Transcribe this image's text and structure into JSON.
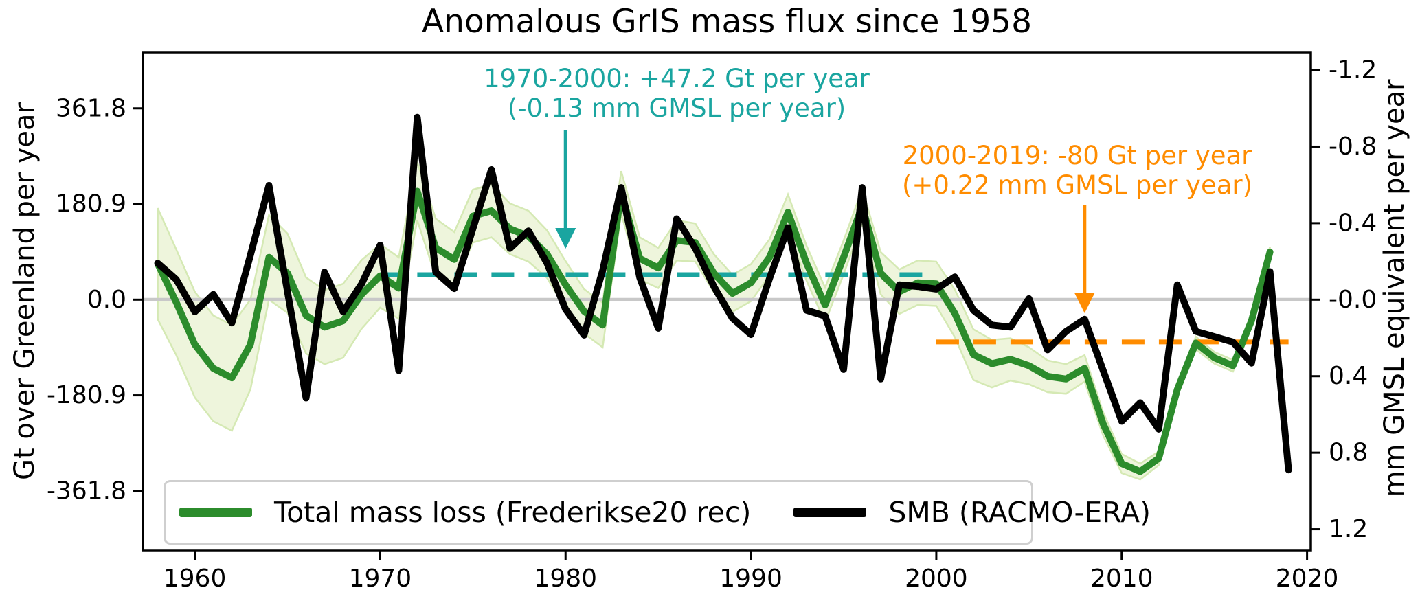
{
  "title": "Anomalous GrIS mass flux since 1958",
  "colors": {
    "green": "#2c8c2c",
    "band_fill": "#eef5dc",
    "band_edge": "#d5e9b4",
    "black": "#000000",
    "teal": "#1aa5a0",
    "orange": "#ff8c00",
    "zero_line": "#c8c8c8",
    "legend_border": "#cfcfcf"
  },
  "axes": {
    "left": {
      "label": "Gt over Greenland per year",
      "tick_labels": [
        "361.8",
        "180.9",
        "0.0",
        "-180.9",
        "-361.8"
      ],
      "tick_values": [
        361.8,
        180.9,
        0,
        -180.9,
        -361.8
      ]
    },
    "right": {
      "label": "mm GMSL equivalent per year",
      "tick_labels": [
        "-1.2",
        "-0.8",
        "-0.4",
        "-0.0",
        "0.4",
        "0.8",
        "1.2"
      ],
      "tick_values": [
        -1.2,
        -0.8,
        -0.4,
        0,
        0.4,
        0.8,
        1.2
      ]
    },
    "bottom": {
      "tick_labels": [
        "1960",
        "1970",
        "1980",
        "1990",
        "2000",
        "2010",
        "2020"
      ],
      "tick_values": [
        1960,
        1970,
        1980,
        1990,
        2000,
        2010,
        2020
      ]
    }
  },
  "annotations": {
    "teal": {
      "line1": "1970-2000: +47.2 Gt per year",
      "line2": "(-0.13 mm GMSL per year)",
      "color": "#1aa5a0",
      "arrow_year": 1980
    },
    "orange": {
      "line1": "2000-2019: -80 Gt per year",
      "line2": "(+0.22 mm GMSL per year)",
      "color": "#ff8c00",
      "arrow_year": 2008
    }
  },
  "legend": {
    "items": [
      {
        "label": "Total mass loss (Frederikse20 rec)",
        "color": "#2c8c2c"
      },
      {
        "label": "SMB (RACMO-ERA)",
        "color": "#000000"
      }
    ]
  },
  "chart_data": {
    "type": "line",
    "title": "Anomalous GrIS mass flux since 1958",
    "ylabel_left": "Gt over Greenland per year",
    "ylabel_right": "mm GMSL equivalent per year",
    "xlim": [
      1957.2,
      2020.2
    ],
    "ylim_gt": [
      -475,
      468
    ],
    "grid": "zero-line-only",
    "legend_position": "lower-left",
    "x": [
      1958,
      1959,
      1960,
      1961,
      1962,
      1963,
      1964,
      1965,
      1966,
      1967,
      1968,
      1969,
      1970,
      1971,
      1972,
      1973,
      1974,
      1975,
      1976,
      1977,
      1978,
      1979,
      1980,
      1981,
      1982,
      1983,
      1984,
      1985,
      1986,
      1987,
      1988,
      1989,
      1990,
      1991,
      1992,
      1993,
      1994,
      1995,
      1996,
      1997,
      1998,
      1999,
      2000,
      2001,
      2002,
      2003,
      2004,
      2005,
      2006,
      2007,
      2008,
      2009,
      2010,
      2011,
      2012,
      2013,
      2014,
      2015,
      2016,
      2017,
      2018,
      2019
    ],
    "series": [
      {
        "name": "Total mass loss (Frederikse20 rec)",
        "color": "#2c8c2c",
        "values": [
          68,
          -5,
          -85,
          -130,
          -148,
          -85,
          80,
          50,
          -30,
          -52,
          -40,
          10,
          45,
          22,
          205,
          98,
          76,
          158,
          168,
          134,
          120,
          86,
          28,
          -22,
          -48,
          203,
          78,
          60,
          112,
          108,
          50,
          12,
          32,
          80,
          165,
          69,
          -10,
          80,
          177,
          50,
          15,
          32,
          30,
          -26,
          -104,
          -121,
          -113,
          -125,
          -145,
          -150,
          -130,
          -235,
          -310,
          -325,
          -300,
          -170,
          -82,
          -110,
          -125,
          -40,
          90,
          null
        ]
      },
      {
        "name": "SMB (RACMO-ERA)",
        "color": "#000000",
        "values": [
          69,
          38,
          -23,
          10,
          -44,
          84,
          216,
          15,
          -186,
          52,
          -23,
          30,
          103,
          -134,
          345,
          52,
          21,
          134,
          246,
          97,
          130,
          69,
          -18,
          -67,
          55,
          212,
          42,
          -54,
          153,
          97,
          25,
          -35,
          -66,
          40,
          136,
          -20,
          -31,
          -132,
          212,
          -150,
          28,
          25,
          20,
          43,
          -20,
          -48,
          -52,
          2,
          -95,
          -60,
          -37,
          -134,
          -230,
          -195,
          -245,
          28,
          -60,
          -70,
          -80,
          -120,
          53,
          -322
        ]
      }
    ],
    "uncertainty_band": {
      "series": "Total mass loss (Frederikse20 rec)",
      "half_width_gt": [
        105,
        100,
        100,
        100,
        100,
        85,
        80,
        75,
        72,
        70,
        70,
        65,
        60,
        58,
        55,
        55,
        52,
        50,
        50,
        48,
        48,
        45,
        45,
        42,
        42,
        40,
        40,
        38,
        38,
        36,
        36,
        35,
        35,
        34,
        34,
        33,
        33,
        32,
        32,
        40,
        42,
        42,
        42,
        45,
        48,
        45,
        40,
        35,
        30,
        28,
        25,
        22,
        18,
        15,
        13,
        12,
        12,
        11,
        11,
        10,
        10
      ]
    },
    "trend_lines": [
      {
        "label": "1970-2000 mean",
        "x_start": 1970,
        "x_end": 2000,
        "value_gt": 47.2,
        "color": "#1aa5a0"
      },
      {
        "label": "2000-2019 mean",
        "x_start": 2000,
        "x_end": 2019,
        "value_gt": -80,
        "color": "#ff8c00"
      }
    ],
    "unit_conversion": {
      "gt_per_mm": -361.8
    }
  }
}
